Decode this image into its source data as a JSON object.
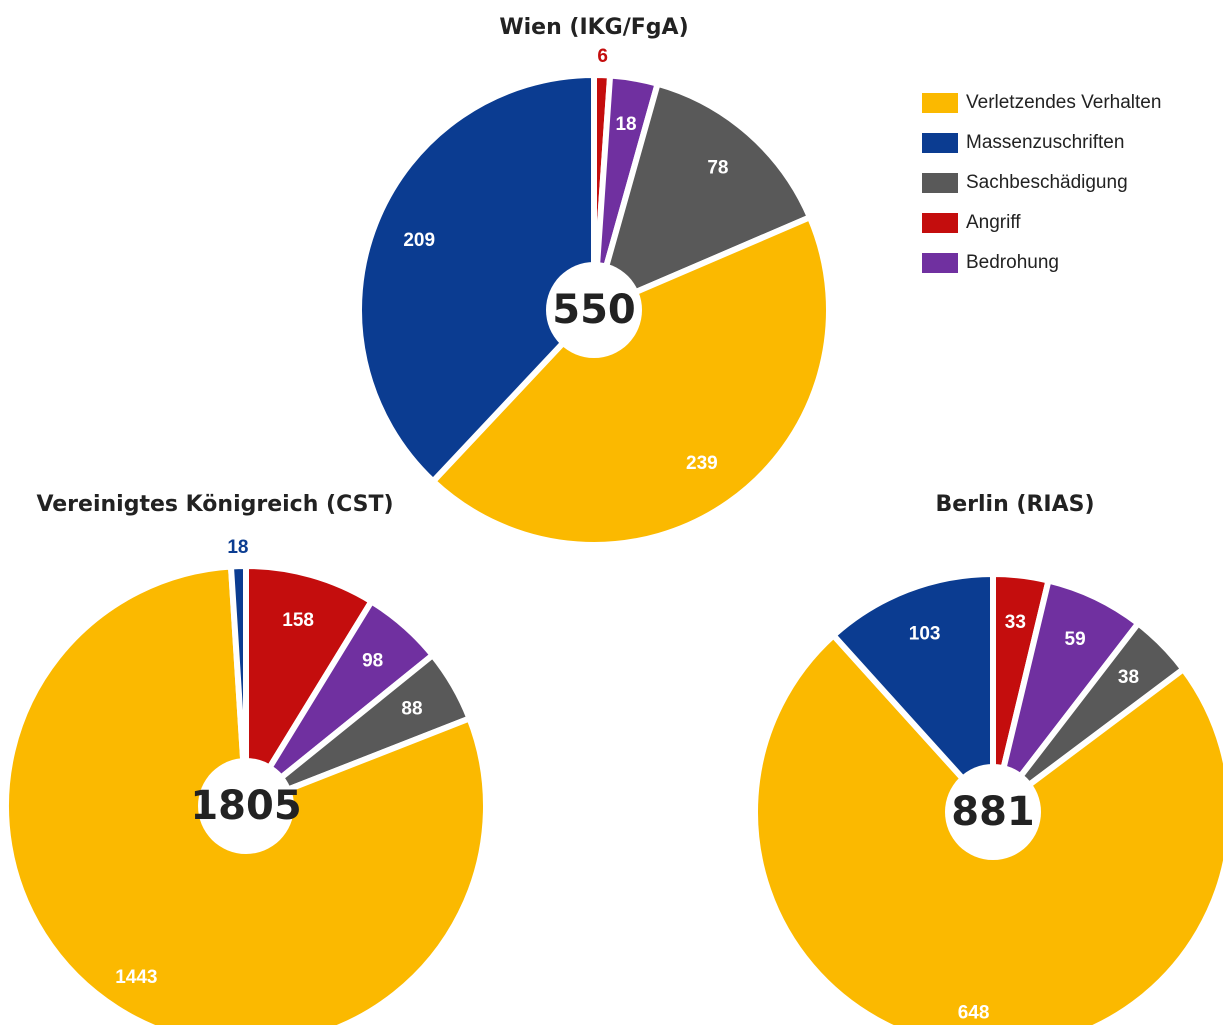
{
  "chart_data": [
    {
      "type": "pie",
      "title": "Wien (IKG/FgA)",
      "total": 550,
      "categories": [
        "Angriff",
        "Bedrohung",
        "Sachbeschädigung",
        "Verletzendes Verhalten",
        "Massenzuschriften"
      ],
      "values": [
        6,
        18,
        78,
        239,
        209
      ],
      "colors": [
        "#c40d0d",
        "#7030a0",
        "#595959",
        "#fbb900",
        "#0b3c91"
      ],
      "legend": true
    },
    {
      "type": "pie",
      "title": "Vereinigtes Königreich (CST)",
      "total": 1805,
      "categories": [
        "Angriff",
        "Bedrohung",
        "Sachbeschädigung",
        "Verletzendes Verhalten",
        "Massenzuschriften"
      ],
      "values": [
        158,
        98,
        88,
        1443,
        18
      ],
      "colors": [
        "#c40d0d",
        "#7030a0",
        "#595959",
        "#fbb900",
        "#0b3c91"
      ],
      "legend": false
    },
    {
      "type": "pie",
      "title": "Berlin (RIAS)",
      "total": 881,
      "categories": [
        "Angriff",
        "Bedrohung",
        "Sachbeschädigung",
        "Verletzendes Verhalten",
        "Massenzuschriften"
      ],
      "values": [
        33,
        59,
        38,
        648,
        103
      ],
      "colors": [
        "#c40d0d",
        "#7030a0",
        "#595959",
        "#fbb900",
        "#0b3c91"
      ],
      "legend": false
    }
  ]
}
